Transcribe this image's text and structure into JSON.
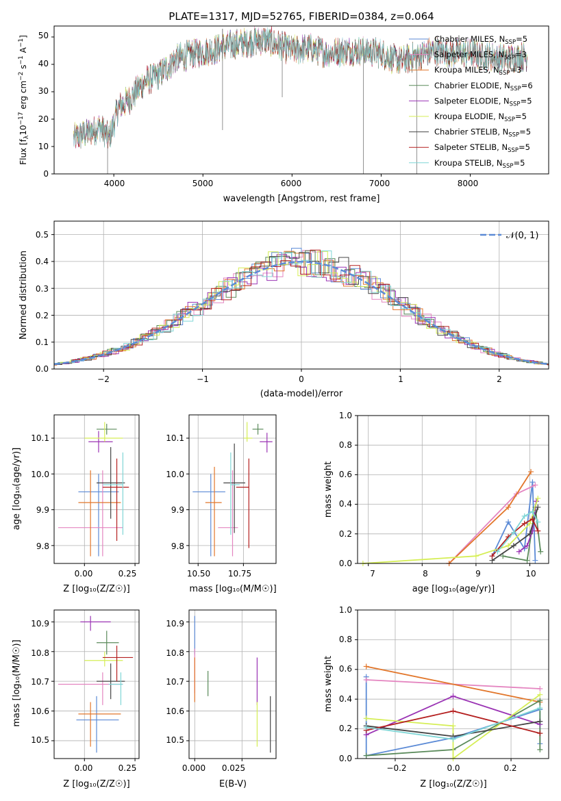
{
  "colors": {
    "chabrier_miles": "#5b8ad6",
    "salpeter_miles": "#e485c0",
    "kroupa_miles": "#e2762a",
    "chabrier_elodie": "#5a8a5a",
    "salpeter_elodie": "#9a33b4",
    "kroupa_elodie": "#d5ee55",
    "chabrier_stelib": "#444444",
    "salpeter_stelib": "#b41f1f",
    "kroupa_stelib": "#7fd6d6",
    "normal_curve": "#5b8ad6"
  },
  "panels": {
    "spectrum": {
      "title": "PLATE=1317, MJD=52765, FIBERID=0384, z=0.064",
      "xlabel": "wavelength [Angstrom, rest frame]",
      "ylabel_main": "Flux [f",
      "ylabel_sub": "λ",
      "ylabel_mid": "10",
      "ylabel_sup1": "−17",
      "ylabel_mid2": " erg cm",
      "ylabel_sup2": "−2",
      "ylabel_mid3": " s",
      "ylabel_sup3": "−1",
      "ylabel_mid4": " A",
      "ylabel_sup4": "−1",
      "ylabel_end": "]",
      "xticks": [
        "4000",
        "5000",
        "6000",
        "7000",
        "8000"
      ],
      "yticks": [
        "0",
        "10",
        "20",
        "30",
        "40",
        "50"
      ],
      "legend": [
        {
          "a": "Chabrier MILES, N",
          "sub": "SSP",
          "b": "=5"
        },
        {
          "a": "Salpeter MILES, N",
          "sub": "SSP",
          "b": "=3"
        },
        {
          "a": "Kroupa MILES, N",
          "sub": "SSP",
          "b": "=3"
        },
        {
          "a": "Chabrier ELODIE, N",
          "sub": "SSP",
          "b": "=6"
        },
        {
          "a": "Salpeter ELODIE, N",
          "sub": "SSP",
          "b": "=5"
        },
        {
          "a": "Kroupa ELODIE, N",
          "sub": "SSP",
          "b": "=5"
        },
        {
          "a": "Chabrier STELIB, N",
          "sub": "SSP",
          "b": "=5"
        },
        {
          "a": "Salpeter STELIB, N",
          "sub": "SSP",
          "b": "=5"
        },
        {
          "a": "Kroupa STELIB, N",
          "sub": "SSP",
          "b": "=5"
        }
      ]
    },
    "residuals": {
      "xlabel": "(data-model)/error",
      "ylabel": "Normed distribution",
      "xticks": [
        "−2",
        "−1",
        "0",
        "1",
        "2"
      ],
      "yticks": [
        "0.0",
        "0.1",
        "0.2",
        "0.3",
        "0.4",
        "0.5"
      ],
      "legend_label": "𝒩(0, 1)"
    },
    "age_vs_z": {
      "xlabel": "Z [log₁₀(Z/Z☉)]",
      "ylabel": "age  [log₁₀(age/yr)]",
      "xticks": [
        "0.00",
        "0.25"
      ],
      "yticks": [
        "9.8",
        "9.9",
        "10.0",
        "10.1"
      ]
    },
    "age_vs_mass": {
      "xlabel": "mass [log₁₀(M/M☉)]",
      "xticks": [
        "10.50",
        "10.75"
      ],
      "yticks": [
        "9.8",
        "9.9",
        "10.0",
        "10.1"
      ]
    },
    "weight_vs_age": {
      "xlabel": "age  [log₁₀(age/yr)]",
      "ylabel": "mass weight",
      "xticks": [
        "7",
        "8",
        "9",
        "10"
      ],
      "yticks": [
        "0.0",
        "0.2",
        "0.4",
        "0.6",
        "0.8",
        "1.0"
      ]
    },
    "mass_vs_z": {
      "xlabel": "Z [log₁₀(Z/Z☉)]",
      "ylabel": "mass [log₁₀(M/M☉)]",
      "xticks": [
        "0.00",
        "0.25"
      ],
      "yticks": [
        "10.5",
        "10.6",
        "10.7",
        "10.8",
        "10.9"
      ]
    },
    "mass_vs_ebv": {
      "xlabel": "E(B-V)",
      "xticks": [
        "0.000",
        "0.025"
      ],
      "yticks": [
        "10.5",
        "10.6",
        "10.7",
        "10.8",
        "10.9"
      ]
    },
    "weight_vs_z": {
      "xlabel": "Z [log₁₀(Z/Z☉)]",
      "ylabel": "mass weight",
      "xticks": [
        "−0.2",
        "0.0",
        "0.2"
      ],
      "yticks": [
        "0.0",
        "0.2",
        "0.4",
        "0.6",
        "0.8",
        "1.0"
      ]
    }
  },
  "chart_data": [
    {
      "type": "line",
      "title": "PLATE=1317, MJD=52765, FIBERID=0384, z=0.064",
      "xlabel": "wavelength [Angstrom, rest frame]",
      "ylabel": "Flux [fλ10−17 erg cm−2 s−1 A−1]",
      "xlim": [
        3330,
        8880
      ],
      "ylim": [
        0,
        54
      ],
      "legend_position": "top-right",
      "grid": false,
      "continuum_wavelength": [
        3550,
        3700,
        3850,
        3950,
        4050,
        4200,
        4350,
        4500,
        4700,
        4900,
        5100,
        5300,
        5500,
        5700,
        5850,
        6000,
        6200,
        6400,
        6600,
        6800,
        7000,
        7200,
        7400,
        7600,
        7800,
        8000,
        8200,
        8400,
        8640
      ],
      "continuum_flux": [
        13,
        15,
        17,
        13,
        24,
        28,
        34,
        36,
        42,
        44,
        45,
        47,
        48,
        49,
        47,
        45,
        46,
        44,
        45,
        45,
        44,
        41,
        43,
        45,
        44,
        44,
        43,
        42,
        43
      ],
      "series": [
        {
          "name": "Chabrier MILES, NSSP=5"
        },
        {
          "name": "Salpeter MILES, NSSP=3"
        },
        {
          "name": "Kroupa MILES, NSSP=3"
        },
        {
          "name": "Chabrier ELODIE, NSSP=6"
        },
        {
          "name": "Salpeter ELODIE, NSSP=5"
        },
        {
          "name": "Kroupa ELODIE, NSSP=5"
        },
        {
          "name": "Chabrier STELIB, NSSP=5"
        },
        {
          "name": "Salpeter STELIB, NSSP=5"
        },
        {
          "name": "Kroupa STELIB, NSSP=5"
        }
      ]
    },
    {
      "type": "area",
      "xlabel": "(data-model)/error",
      "ylabel": "Normed distribution",
      "xlim": [
        -2.5,
        2.5
      ],
      "ylim": [
        0,
        0.55
      ],
      "grid": true,
      "legend_position": "top-right",
      "bin_width": 0.1,
      "reference_curve": "𝒩(0, 1)"
    },
    {
      "type": "scatter",
      "xlabel": "Z [log10(Z/Z☉)]",
      "ylabel": "age [log10(age/yr)]",
      "xlim": [
        -0.15,
        0.27
      ],
      "ylim": [
        9.75,
        10.165
      ],
      "points": [
        {
          "x": 0.07,
          "y": 9.95,
          "xerr": [
            0.1,
            0.1
          ],
          "yerr": [
            0.18,
            0.05
          ]
        },
        {
          "x": 0.09,
          "y": 9.85,
          "xerr": [
            0.22,
            0.1
          ],
          "yerr": [
            0.08,
            0.16
          ]
        },
        {
          "x": 0.03,
          "y": 9.92,
          "xerr": [
            0.06,
            0.15
          ],
          "yerr": [
            0.15,
            0.09
          ]
        },
        {
          "x": 0.11,
          "y": 10.125,
          "xerr": [
            0.05,
            0.05
          ],
          "yerr": [
            0.015,
            0.015
          ]
        },
        {
          "x": 0.07,
          "y": 10.09,
          "xerr": [
            0.05,
            0.07
          ],
          "yerr": [
            0.03,
            0.03
          ]
        },
        {
          "x": 0.1,
          "y": 10.1,
          "xerr": [
            0.1,
            0.09
          ],
          "yerr": [
            0.01,
            0.045
          ]
        },
        {
          "x": 0.13,
          "y": 9.975,
          "xerr": [
            0.07,
            0.07
          ],
          "yerr": [
            0.1,
            0.1
          ]
        },
        {
          "x": 0.16,
          "y": 9.963,
          "xerr": [
            0.07,
            0.06
          ],
          "yerr": [
            0.15,
            0.08
          ]
        },
        {
          "x": 0.19,
          "y": 9.97,
          "xerr": [
            0.1,
            0.0
          ],
          "yerr": [
            0.14,
            0.09
          ]
        }
      ]
    },
    {
      "type": "scatter",
      "xlabel": "mass [log10(M/M☉)]",
      "ylabel": "age [log10(age/yr)]",
      "xlim": [
        10.45,
        10.93
      ],
      "ylim": [
        9.75,
        10.165
      ],
      "points": [
        {
          "x": 10.57,
          "y": 9.95,
          "xerr": [
            0.1,
            0.08
          ],
          "yerr": [
            0.18,
            0.05
          ]
        },
        {
          "x": 10.69,
          "y": 9.85,
          "xerr": [
            0.08,
            0.03
          ],
          "yerr": [
            0.08,
            0.16
          ]
        },
        {
          "x": 10.59,
          "y": 9.92,
          "xerr": [
            0.05,
            0.04
          ],
          "yerr": [
            0.15,
            0.1
          ]
        },
        {
          "x": 10.83,
          "y": 10.125,
          "xerr": [
            0.03,
            0.03
          ],
          "yerr": [
            0.015,
            0.015
          ]
        },
        {
          "x": 10.88,
          "y": 10.09,
          "xerr": [
            0.04,
            0.03
          ],
          "yerr": [
            0.03,
            0.025
          ]
        },
        {
          "x": 10.77,
          "y": 10.1,
          "xerr": [
            0.02,
            0.03
          ],
          "yerr": [
            0.01,
            0.045
          ]
        },
        {
          "x": 10.7,
          "y": 9.975,
          "xerr": [
            0.06,
            0.06
          ],
          "yerr": [
            0.14,
            0.11
          ]
        },
        {
          "x": 10.78,
          "y": 9.963,
          "xerr": [
            0.07,
            0.0
          ],
          "yerr": [
            0.17,
            0.08
          ]
        },
        {
          "x": 10.68,
          "y": 9.97,
          "xerr": [
            0.0,
            0.05
          ],
          "yerr": [
            0.14,
            0.09
          ]
        }
      ]
    },
    {
      "type": "line",
      "xlabel": "age [log10(age/yr)]",
      "ylabel": "mass weight",
      "xlim": [
        6.8,
        10.35
      ],
      "ylim": [
        0,
        1
      ],
      "grid": true,
      "series": [
        {
          "name": "Chabrier MILES",
          "x": [
            9.3,
            9.6,
            9.9,
            10.05,
            10.1
          ],
          "y": [
            0.05,
            0.28,
            0.1,
            0.55,
            0.02
          ]
        },
        {
          "name": "Salpeter MILES",
          "x": [
            8.5,
            9.75,
            10.1
          ],
          "y": [
            0.0,
            0.47,
            0.53
          ]
        },
        {
          "name": "Kroupa MILES",
          "x": [
            8.5,
            9.6,
            10.02
          ],
          "y": [
            0.0,
            0.38,
            0.62
          ]
        },
        {
          "name": "Chabrier ELODIE",
          "x": [
            9.5,
            9.95,
            10.1,
            10.2
          ],
          "y": [
            0.05,
            0.02,
            0.38,
            0.08
          ]
        },
        {
          "name": "Salpeter ELODIE",
          "x": [
            9.8,
            9.95,
            10.05,
            10.12
          ],
          "y": [
            0.08,
            0.12,
            0.22,
            0.42
          ]
        },
        {
          "name": "Kroupa ELODIE",
          "x": [
            6.9,
            9.0,
            9.6,
            10.0,
            10.15
          ],
          "y": [
            0.0,
            0.05,
            0.12,
            0.27,
            0.44
          ]
        },
        {
          "name": "Chabrier STELIB",
          "x": [
            9.3,
            9.7,
            10.0,
            10.15
          ],
          "y": [
            0.02,
            0.12,
            0.2,
            0.38
          ]
        },
        {
          "name": "Salpeter STELIB",
          "x": [
            9.3,
            9.6,
            9.9,
            10.05,
            10.15
          ],
          "y": [
            0.05,
            0.18,
            0.27,
            0.3,
            0.22
          ]
        },
        {
          "name": "Kroupa STELIB",
          "x": [
            9.4,
            9.7,
            9.9,
            10.05,
            10.15
          ],
          "y": [
            0.08,
            0.21,
            0.32,
            0.35,
            0.28
          ]
        }
      ]
    },
    {
      "type": "scatter",
      "xlabel": "Z [log10(Z/Z☉)]",
      "ylabel": "mass [log10(M/M☉)]",
      "xlim": [
        -0.15,
        0.27
      ],
      "ylim": [
        10.44,
        10.94
      ],
      "points": [
        {
          "x": 0.06,
          "y": 10.57,
          "xerr": [
            0.1,
            0.11
          ],
          "yerr": [
            0.11,
            0.08
          ]
        },
        {
          "x": 0.09,
          "y": 10.69,
          "xerr": [
            0.22,
            0.1
          ],
          "yerr": [
            0.07,
            0.04
          ]
        },
        {
          "x": 0.03,
          "y": 10.59,
          "xerr": [
            0.06,
            0.15
          ],
          "yerr": [
            0.11,
            0.04
          ]
        },
        {
          "x": 0.11,
          "y": 10.83,
          "xerr": [
            0.05,
            0.06
          ],
          "yerr": [
            0.04,
            0.04
          ]
        },
        {
          "x": 0.03,
          "y": 10.9,
          "xerr": [
            0.05,
            0.1
          ],
          "yerr": [
            0.03,
            0.02
          ]
        },
        {
          "x": 0.1,
          "y": 10.77,
          "xerr": [
            0.1,
            0.09
          ],
          "yerr": [
            0.02,
            0.03
          ]
        },
        {
          "x": 0.13,
          "y": 10.7,
          "xerr": [
            0.07,
            0.07
          ],
          "yerr": [
            0.06,
            0.06
          ]
        },
        {
          "x": 0.16,
          "y": 10.78,
          "xerr": [
            0.07,
            0.08
          ],
          "yerr": [
            0.08,
            0.04
          ]
        },
        {
          "x": 0.18,
          "y": 10.69,
          "xerr": [
            0.06,
            0.01
          ],
          "yerr": [
            0.07,
            0.04
          ]
        }
      ]
    },
    {
      "type": "scatter",
      "xlabel": "E(B-V)",
      "ylabel": "mass [log10(M/M☉)]",
      "xlim": [
        -0.003,
        0.043
      ],
      "ylim": [
        10.44,
        10.94
      ],
      "points": [
        {
          "x": 0.0,
          "y": 10.83,
          "yerr": [
            0.04,
            0.09
          ]
        },
        {
          "x": 0.0,
          "y": 10.75,
          "yerr": [
            0.09,
            0.06
          ]
        },
        {
          "x": 0.0,
          "y": 10.7,
          "yerr": [
            0.07,
            0.08
          ]
        },
        {
          "x": 0.007,
          "y": 10.69,
          "yerr": [
            0.04,
            0.045
          ]
        },
        {
          "x": 0.033,
          "y": 10.69,
          "yerr": [
            0.07,
            0.09
          ]
        },
        {
          "x": 0.033,
          "y": 10.58,
          "yerr": [
            0.1,
            0.05
          ]
        },
        {
          "x": 0.04,
          "y": 10.57,
          "yerr": [
            0.11,
            0.08
          ]
        }
      ]
    },
    {
      "type": "line",
      "xlabel": "Z [log10(Z/Z☉)]",
      "ylabel": "mass weight",
      "xlim": [
        -0.33,
        0.33
      ],
      "ylim": [
        0,
        1
      ],
      "grid": true,
      "series": [
        {
          "name": "Chabrier MILES",
          "x": [
            -0.3,
            -0.3,
            0.0,
            0.3,
            0.3
          ],
          "y": [
            0.55,
            0.02,
            0.14,
            0.33,
            0.1
          ]
        },
        {
          "name": "Salpeter MILES",
          "x": [
            -0.3,
            0.3
          ],
          "y": [
            0.53,
            0.47
          ]
        },
        {
          "name": "Kroupa MILES",
          "x": [
            -0.3,
            0.3
          ],
          "y": [
            0.62,
            0.38
          ]
        },
        {
          "name": "Chabrier ELODIE",
          "x": [
            -0.3,
            0.0,
            0.3,
            0.3
          ],
          "y": [
            0.02,
            0.06,
            0.39,
            0.06
          ]
        },
        {
          "name": "Salpeter ELODIE",
          "x": [
            -0.3,
            0.0,
            0.3
          ],
          "y": [
            0.16,
            0.42,
            0.23
          ]
        },
        {
          "name": "Kroupa ELODIE",
          "x": [
            -0.3,
            0.0,
            0.0,
            0.3
          ],
          "y": [
            0.27,
            0.22,
            0.0,
            0.43
          ]
        },
        {
          "name": "Chabrier STELIB",
          "x": [
            -0.3,
            0.0,
            0.3
          ],
          "y": [
            0.22,
            0.15,
            0.25
          ]
        },
        {
          "name": "Salpeter STELIB",
          "x": [
            -0.3,
            0.0,
            0.3
          ],
          "y": [
            0.19,
            0.32,
            0.17
          ]
        },
        {
          "name": "Kroupa STELIB",
          "x": [
            -0.3,
            0.0,
            0.3
          ],
          "y": [
            0.21,
            0.13,
            0.34
          ]
        }
      ]
    }
  ]
}
